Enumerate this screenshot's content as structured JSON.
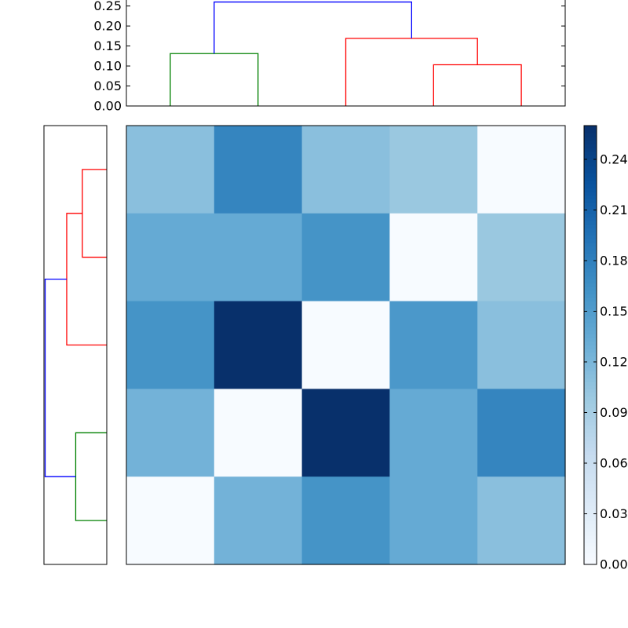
{
  "chart_data": [
    {
      "type": "dendrogram",
      "orientation": "top",
      "ylim": [
        0,
        0.265
      ],
      "yticks": [
        "0.00",
        "0.05",
        "0.10",
        "0.15",
        "0.20",
        "0.25"
      ],
      "leaf_count": 5,
      "links": [
        {
          "color": "#008000",
          "x1": 0,
          "x2": 1,
          "y_left": 0,
          "y_right": 0,
          "height": 0.131
        },
        {
          "color": "#ff0000",
          "x1": 3,
          "x2": 4,
          "y_left": 0,
          "y_right": 0,
          "height": 0.103
        },
        {
          "color": "#ff0000",
          "x1": 2,
          "x2": 3.5,
          "y_left": 0,
          "y_right": 0.103,
          "height": 0.169
        },
        {
          "color": "#0000ff",
          "x1": 0.5,
          "x2": 2.75,
          "y_left": 0.131,
          "y_right": 0.169,
          "height": 0.26
        }
      ]
    },
    {
      "type": "dendrogram",
      "orientation": "left",
      "xlim": [
        0,
        0.265
      ],
      "leaf_count": 5,
      "links": [
        {
          "color": "#008000",
          "y1": 0,
          "y2": 1,
          "x_top": 0,
          "x_bottom": 0,
          "height": 0.131
        },
        {
          "color": "#ff0000",
          "y1": 3,
          "y2": 4,
          "x_top": 0,
          "x_bottom": 0,
          "height": 0.103
        },
        {
          "color": "#ff0000",
          "y1": 2,
          "y2": 3.5,
          "x_top": 0,
          "x_bottom": 0.103,
          "height": 0.169
        },
        {
          "color": "#0000ff",
          "y1": 0.5,
          "y2": 2.75,
          "x_top": 0.131,
          "x_bottom": 0.169,
          "height": 0.26
        }
      ]
    },
    {
      "type": "heatmap",
      "colormap": "Blues",
      "vmin": 0,
      "vmax": 0.26,
      "rows": 5,
      "cols": 5,
      "values": [
        [
          0.11,
          0.175,
          0.11,
          0.1,
          0.0
        ],
        [
          0.135,
          0.135,
          0.16,
          0.0,
          0.1
        ],
        [
          0.16,
          0.26,
          0.0,
          0.155,
          0.11
        ],
        [
          0.125,
          0.0,
          0.26,
          0.135,
          0.175
        ],
        [
          0.0,
          0.125,
          0.16,
          0.135,
          0.11
        ]
      ]
    },
    {
      "type": "colorbar",
      "vmin": 0,
      "vmax": 0.26,
      "ticks": [
        0,
        0.03,
        0.06,
        0.09,
        0.12,
        0.15,
        0.18,
        0.21,
        0.24
      ],
      "tick_labels": [
        "0.00",
        "0.03",
        "0.06",
        "0.09",
        "0.12",
        "0.15",
        "0.18",
        "0.21",
        "0.24"
      ]
    }
  ]
}
